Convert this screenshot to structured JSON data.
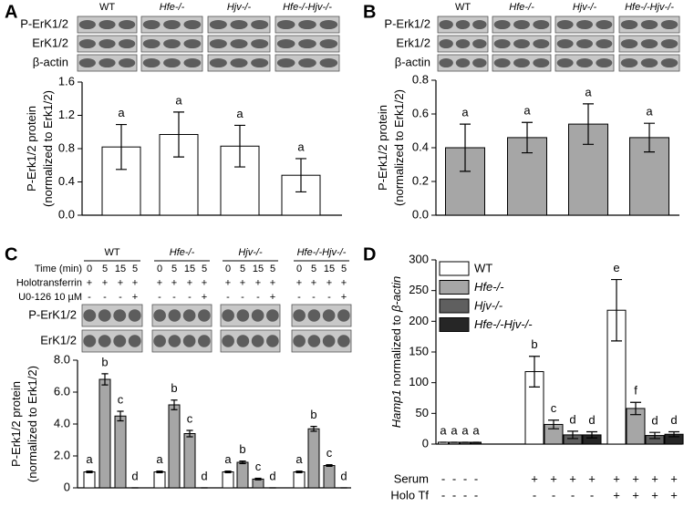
{
  "chart_data": [
    {
      "panel": "A",
      "type": "bar",
      "blot": {
        "columns": [
          "WT",
          "Hfe-/-",
          "Hjv-/-",
          "Hfe-/-Hjv-/-"
        ],
        "rows": [
          "P-ErK1/2",
          "ErK1/2",
          "β-actin"
        ]
      },
      "ylabel": [
        "P-Erk1/2 protein",
        "(normalized to Erk1/2)"
      ],
      "ylim": [
        0,
        1.6
      ],
      "yticks": [
        {
          "value": 0,
          "label": "0.0"
        },
        0.4,
        0.8,
        1.2,
        1.6
      ],
      "color": "#ffffff",
      "values": [
        0.82,
        0.97,
        0.83,
        0.48
      ],
      "errors": [
        0.27,
        0.27,
        0.25,
        0.2
      ],
      "letters": [
        "a",
        "a",
        "a",
        "a"
      ]
    },
    {
      "panel": "B",
      "type": "bar",
      "blot": {
        "columns": [
          "WT",
          "Hfe-/-",
          "Hjv-/-",
          "Hfe-/-Hjv-/-"
        ],
        "rows": [
          "P-Erk1/2",
          "Erk1/2",
          "β-actin"
        ]
      },
      "ylabel": [
        "P-Erk1/2 protein",
        "(normalized to Erk1/2)"
      ],
      "ylim": [
        0,
        0.8
      ],
      "yticks": [
        {
          "value": 0,
          "label": "0.0"
        },
        0.2,
        0.4,
        0.6,
        0.8
      ],
      "color": "#a6a6a6",
      "values": [
        0.4,
        0.46,
        0.54,
        0.46
      ],
      "errors": [
        0.14,
        0.09,
        0.12,
        0.085
      ],
      "letters": [
        "a",
        "a",
        "a",
        "a"
      ]
    },
    {
      "panel": "C",
      "type": "bar",
      "conditions": [
        {
          "label": "Time (min)",
          "values": [
            0,
            5,
            15,
            5,
            0,
            5,
            15,
            5,
            0,
            5,
            15,
            5,
            0,
            5,
            15,
            5
          ]
        },
        {
          "label": "Holotransferrin",
          "values": [
            "+",
            "+",
            "+",
            "+",
            "+",
            "+",
            "+",
            "+",
            "+",
            "+",
            "+",
            "+",
            "+",
            "+",
            "+",
            "+"
          ]
        },
        {
          "label": "U0-126 10 µM",
          "values": [
            "-",
            "-",
            "-",
            "+",
            "-",
            "-",
            "-",
            "+",
            "-",
            "-",
            "-",
            "+",
            "-",
            "-",
            "-",
            "+"
          ]
        }
      ],
      "blot_rows": [
        "P-ErK1/2",
        "ErK1/2"
      ],
      "ylabel": [
        "P-Erk1/2 protein",
        "(normalized to Erk1/2)"
      ],
      "ylim": [
        0,
        8
      ],
      "yticks": [
        0,
        {
          "value": 2,
          "label": "2.0"
        },
        {
          "value": 4,
          "label": "4.0"
        },
        {
          "value": 6,
          "label": "6.0"
        },
        {
          "value": 8,
          "label": "8.0"
        }
      ],
      "colors": [
        "#ffffff",
        "#a6a6a6",
        "#a6a6a6",
        "#a6a6a6"
      ],
      "groups": [
        {
          "name": "WT",
          "values": [
            1.0,
            6.8,
            4.5,
            0
          ],
          "errors": [
            0.05,
            0.35,
            0.3,
            0
          ],
          "letters": [
            "a",
            "b",
            "c",
            "d"
          ]
        },
        {
          "name": "Hfe-/-",
          "values": [
            1.0,
            5.2,
            3.4,
            0
          ],
          "errors": [
            0.05,
            0.3,
            0.2,
            0
          ],
          "letters": [
            "a",
            "b",
            "c",
            "d"
          ]
        },
        {
          "name": "Hjv-/-",
          "values": [
            1.0,
            1.6,
            0.55,
            0
          ],
          "errors": [
            0.05,
            0.08,
            0.05,
            0
          ],
          "letters": [
            "a",
            "b",
            "c",
            "d"
          ]
        },
        {
          "name": "Hfe-/-Hjv-/-",
          "values": [
            1.0,
            3.7,
            1.4,
            0
          ],
          "errors": [
            0.05,
            0.15,
            0.05,
            0
          ],
          "letters": [
            "a",
            "b",
            "c",
            "d"
          ]
        }
      ]
    },
    {
      "panel": "D",
      "type": "bar",
      "ylabel": [
        "Hamp1",
        " normalized to ",
        "β-actin"
      ],
      "ylim": [
        0,
        300
      ],
      "yticks": [
        0,
        50,
        100,
        150,
        200,
        250,
        300
      ],
      "series": [
        {
          "name": "WT",
          "color": "#ffffff",
          "values": [
            3,
            118,
            218
          ],
          "errors": [
            0,
            25,
            50
          ],
          "letters": [
            "a",
            "b",
            "e"
          ]
        },
        {
          "name": "Hfe-/-",
          "color": "#a6a6a6",
          "values": [
            3,
            32,
            58
          ],
          "errors": [
            0,
            7,
            10
          ],
          "letters": [
            "a",
            "c",
            "f"
          ]
        },
        {
          "name": "Hjv-/-",
          "color": "#5f5f5f",
          "values": [
            3,
            15,
            14
          ],
          "errors": [
            0,
            6,
            5
          ],
          "letters": [
            "a",
            "d",
            "d"
          ]
        },
        {
          "name": "Hfe-/-Hjv-/-",
          "color": "#262626",
          "values": [
            3,
            15,
            16
          ],
          "errors": [
            0,
            5,
            4
          ],
          "letters": [
            "a",
            "d",
            "d"
          ]
        }
      ],
      "conditions": [
        {
          "label": "Serum",
          "signs": [
            "-",
            "-",
            "-",
            "-",
            "+",
            "+",
            "+",
            "+",
            "+",
            "+",
            "+",
            "+"
          ]
        },
        {
          "label": "Holo Tf",
          "signs": [
            "-",
            "-",
            "-",
            "-",
            "-",
            "-",
            "-",
            "-",
            "+",
            "+",
            "+",
            "+"
          ]
        }
      ]
    }
  ]
}
